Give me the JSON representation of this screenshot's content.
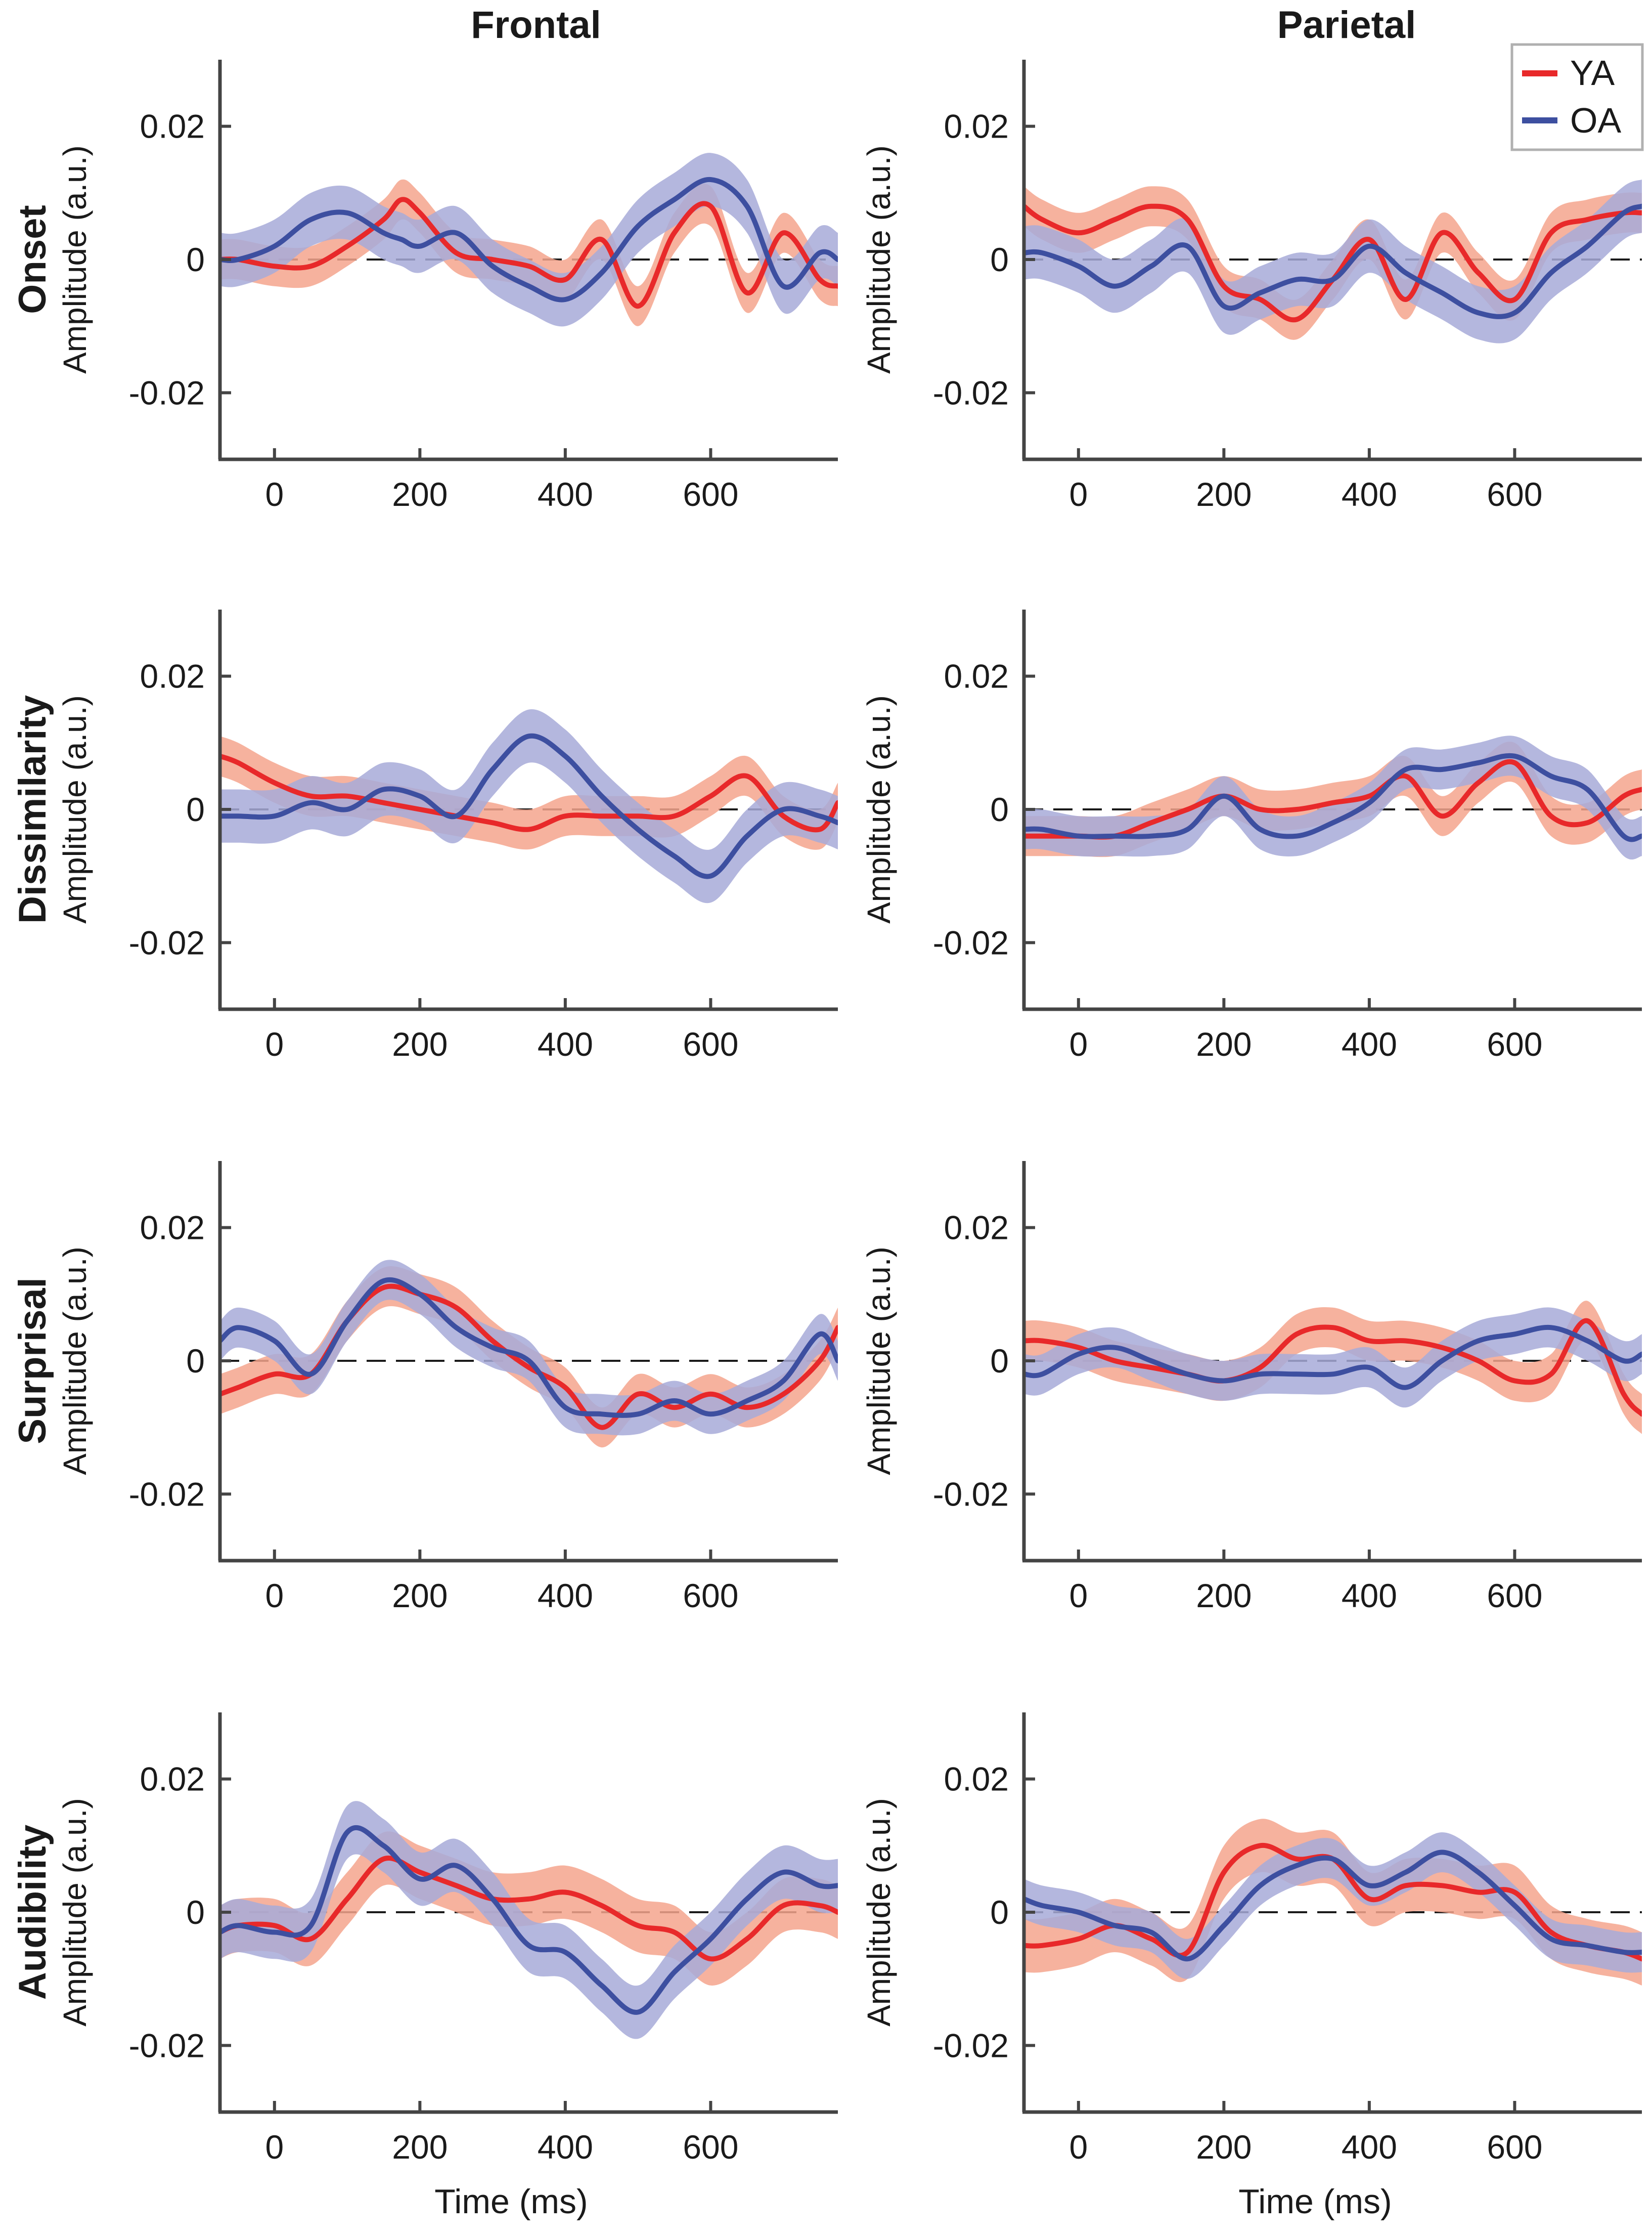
{
  "figure": {
    "column_titles": [
      "Frontal",
      "Parietal"
    ],
    "row_titles": [
      "Onset",
      "Dissimilarity",
      "Surprisal",
      "Audibility"
    ],
    "ylabel": "Amplitude (a.u.)",
    "xlabel": "Time (ms)",
    "legend": [
      {
        "label": "YA",
        "color": "#e8292a"
      },
      {
        "label": "OA",
        "color": "#3d4fa0"
      }
    ],
    "colors": {
      "YA": "#e8292a",
      "YA_band": "#f4a58d",
      "OA": "#3d4fa0",
      "OA_band": "#a7aad8",
      "axis": "#444444"
    }
  },
  "chart_data": [
    {
      "type": "line",
      "row": "Onset",
      "column": "Frontal",
      "xlim": [
        -75,
        775
      ],
      "ylim": [
        -0.03,
        0.03
      ],
      "xticks": [
        0,
        200,
        400,
        600
      ],
      "xtick_labels": [
        "0",
        "200",
        "400",
        "600"
      ],
      "yticks": [
        0.02,
        0,
        -0.02
      ],
      "ytick_labels": [
        "0.02",
        "0",
        "-0.02"
      ],
      "x": [
        -75,
        -50,
        0,
        50,
        100,
        150,
        175,
        200,
        250,
        300,
        350,
        400,
        450,
        500,
        550,
        600,
        650,
        700,
        750,
        775
      ],
      "series": [
        {
          "name": "YA",
          "values": [
            0,
            0,
            -0.001,
            -0.001,
            0.002,
            0.006,
            0.009,
            0.007,
            0.001,
            0,
            -0.001,
            -0.003,
            0.003,
            -0.007,
            0.004,
            0.008,
            -0.005,
            0.004,
            -0.003,
            -0.004
          ],
          "halfwidth": 0.003
        },
        {
          "name": "OA",
          "values": [
            0,
            0,
            0.002,
            0.006,
            0.007,
            0.004,
            0.003,
            0.002,
            0.004,
            -0.001,
            -0.004,
            -0.006,
            -0.002,
            0.005,
            0.009,
            0.012,
            0.008,
            -0.004,
            0.001,
            0
          ],
          "halfwidth": 0.004
        }
      ]
    },
    {
      "type": "line",
      "row": "Onset",
      "column": "Parietal",
      "xlim": [
        -75,
        775
      ],
      "ylim": [
        -0.03,
        0.03
      ],
      "xticks": [
        0,
        200,
        400,
        600
      ],
      "xtick_labels": [
        "0",
        "200",
        "400",
        "600"
      ],
      "yticks": [
        0.02,
        0,
        -0.02
      ],
      "ytick_labels": [
        "0.02",
        "0",
        "-0.02"
      ],
      "x": [
        -75,
        -50,
        0,
        50,
        100,
        150,
        200,
        250,
        300,
        350,
        400,
        450,
        500,
        550,
        600,
        650,
        700,
        750,
        775
      ],
      "series": [
        {
          "name": "YA",
          "values": [
            0.008,
            0.006,
            0.004,
            0.006,
            0.008,
            0.006,
            -0.004,
            -0.006,
            -0.009,
            -0.003,
            0.003,
            -0.006,
            0.004,
            -0.002,
            -0.006,
            0.004,
            0.006,
            0.007,
            0.007
          ],
          "halfwidth": 0.003
        },
        {
          "name": "OA",
          "values": [
            0.001,
            0.001,
            -0.001,
            -0.004,
            -0.001,
            0.002,
            -0.007,
            -0.005,
            -0.003,
            -0.003,
            0.002,
            -0.002,
            -0.005,
            -0.008,
            -0.008,
            -0.002,
            0.002,
            0.007,
            0.008
          ],
          "halfwidth": 0.004
        }
      ]
    },
    {
      "type": "line",
      "row": "Dissimilarity",
      "column": "Frontal",
      "xlim": [
        -75,
        775
      ],
      "ylim": [
        -0.03,
        0.03
      ],
      "xticks": [
        0,
        200,
        400,
        600
      ],
      "xtick_labels": [
        "0",
        "200",
        "400",
        "600"
      ],
      "yticks": [
        0.02,
        0,
        -0.02
      ],
      "ytick_labels": [
        "0.02",
        "0",
        "-0.02"
      ],
      "x": [
        -75,
        -50,
        0,
        50,
        100,
        150,
        200,
        250,
        300,
        350,
        400,
        450,
        500,
        550,
        600,
        650,
        700,
        750,
        775
      ],
      "series": [
        {
          "name": "YA",
          "values": [
            0.008,
            0.007,
            0.004,
            0.002,
            0.002,
            0.001,
            0,
            -0.001,
            -0.002,
            -0.003,
            -0.001,
            -0.001,
            -0.001,
            -0.001,
            0.002,
            0.005,
            -0.001,
            -0.003,
            0.001
          ],
          "halfwidth": 0.003
        },
        {
          "name": "OA",
          "values": [
            -0.001,
            -0.001,
            -0.001,
            0.001,
            0,
            0.003,
            0.002,
            -0.001,
            0.006,
            0.011,
            0.008,
            0.002,
            -0.003,
            -0.007,
            -0.01,
            -0.004,
            0,
            -0.001,
            -0.002
          ],
          "halfwidth": 0.004
        }
      ]
    },
    {
      "type": "line",
      "row": "Dissimilarity",
      "column": "Parietal",
      "xlim": [
        -75,
        775
      ],
      "ylim": [
        -0.03,
        0.03
      ],
      "xticks": [
        0,
        200,
        400,
        600
      ],
      "xtick_labels": [
        "0",
        "200",
        "400",
        "600"
      ],
      "yticks": [
        0.02,
        0,
        -0.02
      ],
      "ytick_labels": [
        "0.02",
        "0",
        "-0.02"
      ],
      "x": [
        -75,
        -50,
        0,
        50,
        100,
        150,
        200,
        250,
        300,
        350,
        400,
        450,
        500,
        550,
        600,
        650,
        700,
        750,
        775
      ],
      "series": [
        {
          "name": "YA",
          "values": [
            -0.004,
            -0.004,
            -0.004,
            -0.004,
            -0.002,
            0,
            0.002,
            0,
            0,
            0.001,
            0.002,
            0.005,
            -0.001,
            0.004,
            0.007,
            -0.001,
            -0.002,
            0.002,
            0.003
          ],
          "halfwidth": 0.003
        },
        {
          "name": "OA",
          "values": [
            -0.003,
            -0.003,
            -0.004,
            -0.004,
            -0.004,
            -0.003,
            0.002,
            -0.003,
            -0.004,
            -0.002,
            0.001,
            0.006,
            0.006,
            0.007,
            0.008,
            0.005,
            0.003,
            -0.004,
            -0.004
          ],
          "halfwidth": 0.003
        }
      ]
    },
    {
      "type": "line",
      "row": "Surprisal",
      "column": "Frontal",
      "xlim": [
        -75,
        775
      ],
      "ylim": [
        -0.03,
        0.03
      ],
      "xticks": [
        0,
        200,
        400,
        600
      ],
      "xtick_labels": [
        "0",
        "200",
        "400",
        "600"
      ],
      "yticks": [
        0.02,
        0,
        -0.02
      ],
      "ytick_labels": [
        "0.02",
        "0",
        "-0.02"
      ],
      "x": [
        -75,
        -50,
        0,
        50,
        100,
        150,
        200,
        250,
        300,
        350,
        400,
        450,
        500,
        550,
        600,
        650,
        700,
        750,
        775
      ],
      "series": [
        {
          "name": "YA",
          "values": [
            -0.005,
            -0.004,
            -0.002,
            -0.002,
            0.006,
            0.011,
            0.01,
            0.008,
            0.003,
            -0.001,
            -0.004,
            -0.01,
            -0.005,
            -0.007,
            -0.005,
            -0.007,
            -0.005,
            0,
            0.005
          ],
          "halfwidth": 0.003
        },
        {
          "name": "OA",
          "values": [
            0.003,
            0.005,
            0.003,
            -0.002,
            0.006,
            0.012,
            0.01,
            0.005,
            0.002,
            0,
            -0.007,
            -0.008,
            -0.008,
            -0.006,
            -0.008,
            -0.006,
            -0.003,
            0.004,
            0
          ],
          "halfwidth": 0.003
        }
      ]
    },
    {
      "type": "line",
      "row": "Surprisal",
      "column": "Parietal",
      "xlim": [
        -75,
        775
      ],
      "ylim": [
        -0.03,
        0.03
      ],
      "xticks": [
        0,
        200,
        400,
        600
      ],
      "xtick_labels": [
        "0",
        "200",
        "400",
        "600"
      ],
      "yticks": [
        0.02,
        0,
        -0.02
      ],
      "ytick_labels": [
        "0.02",
        "0",
        "-0.02"
      ],
      "x": [
        -75,
        -50,
        0,
        50,
        100,
        150,
        200,
        250,
        300,
        350,
        400,
        450,
        500,
        550,
        600,
        650,
        700,
        750,
        775
      ],
      "series": [
        {
          "name": "YA",
          "values": [
            0.003,
            0.003,
            0.002,
            0,
            -0.001,
            -0.002,
            -0.003,
            -0.001,
            0.004,
            0.005,
            0.003,
            0.003,
            0.002,
            0,
            -0.003,
            -0.002,
            0.006,
            -0.005,
            -0.008
          ],
          "halfwidth": 0.003
        },
        {
          "name": "OA",
          "values": [
            -0.002,
            -0.002,
            0.001,
            0.002,
            0,
            -0.002,
            -0.003,
            -0.002,
            -0.002,
            -0.002,
            -0.001,
            -0.004,
            0,
            0.003,
            0.004,
            0.005,
            0.003,
            0,
            0.001
          ],
          "halfwidth": 0.003
        }
      ]
    },
    {
      "type": "line",
      "row": "Audibility",
      "column": "Frontal",
      "xlim": [
        -75,
        775
      ],
      "ylim": [
        -0.03,
        0.03
      ],
      "xticks": [
        0,
        200,
        400,
        600
      ],
      "xtick_labels": [
        "0",
        "200",
        "400",
        "600"
      ],
      "yticks": [
        0.02,
        0,
        -0.02
      ],
      "ytick_labels": [
        "0.02",
        "0",
        "-0.02"
      ],
      "x": [
        -75,
        -50,
        0,
        50,
        100,
        150,
        200,
        250,
        300,
        350,
        400,
        450,
        500,
        550,
        600,
        650,
        700,
        750,
        775
      ],
      "series": [
        {
          "name": "YA",
          "values": [
            -0.003,
            -0.002,
            -0.002,
            -0.004,
            0.002,
            0.008,
            0.006,
            0.004,
            0.002,
            0.002,
            0.003,
            0.001,
            -0.002,
            -0.003,
            -0.007,
            -0.004,
            0.001,
            0.001,
            0
          ],
          "halfwidth": 0.004
        },
        {
          "name": "OA",
          "values": [
            -0.003,
            -0.002,
            -0.003,
            -0.002,
            0.012,
            0.01,
            0.005,
            0.007,
            0.002,
            -0.005,
            -0.006,
            -0.011,
            -0.015,
            -0.009,
            -0.004,
            0.002,
            0.006,
            0.004,
            0.004
          ],
          "halfwidth": 0.004
        }
      ]
    },
    {
      "type": "line",
      "row": "Audibility",
      "column": "Parietal",
      "xlim": [
        -75,
        775
      ],
      "ylim": [
        -0.03,
        0.03
      ],
      "xticks": [
        0,
        200,
        400,
        600
      ],
      "xtick_labels": [
        "0",
        "200",
        "400",
        "600"
      ],
      "yticks": [
        0.02,
        0,
        -0.02
      ],
      "ytick_labels": [
        "0.02",
        "0",
        "-0.02"
      ],
      "x": [
        -75,
        -50,
        0,
        50,
        100,
        150,
        200,
        250,
        300,
        350,
        400,
        450,
        500,
        550,
        600,
        650,
        700,
        750,
        775
      ],
      "series": [
        {
          "name": "YA",
          "values": [
            -0.005,
            -0.005,
            -0.004,
            -0.002,
            -0.004,
            -0.006,
            0.006,
            0.01,
            0.008,
            0.008,
            0.002,
            0.004,
            0.004,
            0.003,
            0.003,
            -0.003,
            -0.005,
            -0.006,
            -0.007
          ],
          "halfwidth": 0.004
        },
        {
          "name": "OA",
          "values": [
            0.002,
            0.001,
            0,
            -0.002,
            -0.003,
            -0.007,
            -0.002,
            0.004,
            0.007,
            0.008,
            0.004,
            0.006,
            0.009,
            0.006,
            0.001,
            -0.004,
            -0.005,
            -0.006,
            -0.006
          ],
          "halfwidth": 0.003
        }
      ]
    }
  ]
}
